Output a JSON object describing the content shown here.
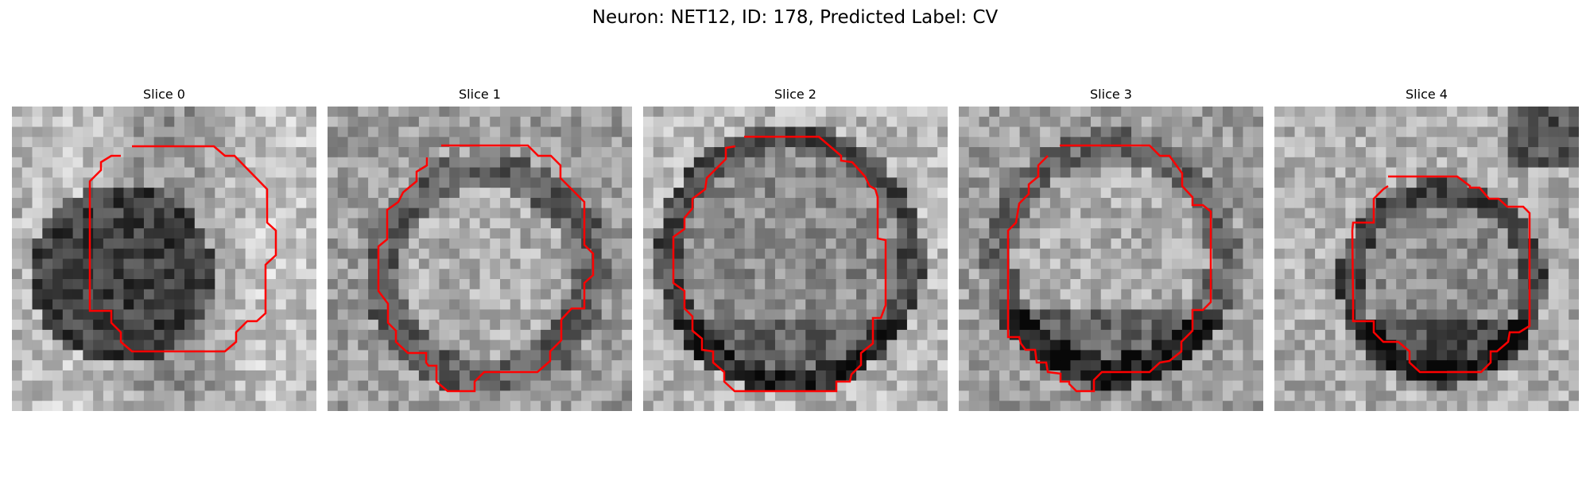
{
  "title": "Neuron: NET12, ID: 178, Predicted Label: CV",
  "contour_color": "#ff0000",
  "image_colormap": "gray",
  "panels": [
    {
      "label": "Slice 0",
      "pattern": "dark-ring"
    },
    {
      "label": "Slice 1",
      "pattern": "light-center"
    },
    {
      "label": "Slice 2",
      "pattern": "medium-round"
    },
    {
      "label": "Slice 3",
      "pattern": "light-center-dark-bottom"
    },
    {
      "label": "Slice 4",
      "pattern": "small-dark-bottom"
    }
  ]
}
